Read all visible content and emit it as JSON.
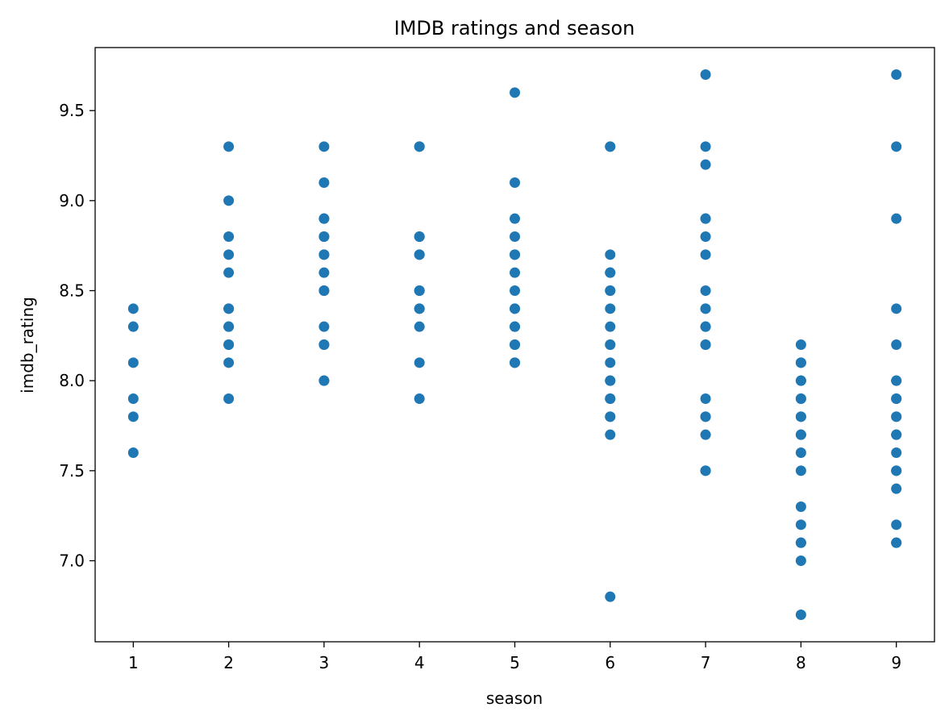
{
  "chart_data": {
    "type": "scatter",
    "title": "IMDB ratings and season",
    "xlabel": "season",
    "ylabel": "imdb_rating",
    "xlim": [
      0.6,
      9.4
    ],
    "ylim": [
      6.55,
      9.85
    ],
    "xticks": [
      1,
      2,
      3,
      4,
      5,
      6,
      7,
      8,
      9
    ],
    "yticks": [
      7.0,
      7.5,
      8.0,
      8.5,
      9.0,
      9.5
    ],
    "ytick_labels": [
      "7.0",
      "7.5",
      "8.0",
      "8.5",
      "9.0",
      "9.5"
    ],
    "grid": false,
    "legend": "none",
    "color": "#1f77b4",
    "points": [
      {
        "season": 1,
        "ratings": [
          8.4,
          8.3,
          8.1,
          7.9,
          7.8,
          7.6
        ]
      },
      {
        "season": 2,
        "ratings": [
          9.3,
          9.0,
          8.8,
          8.7,
          8.6,
          8.4,
          8.4,
          8.3,
          8.3,
          8.2,
          8.2,
          8.1,
          7.9
        ]
      },
      {
        "season": 3,
        "ratings": [
          9.3,
          9.1,
          8.9,
          8.9,
          8.8,
          8.8,
          8.7,
          8.7,
          8.6,
          8.5,
          8.5,
          8.3,
          8.2,
          8.2,
          8.0,
          8.0
        ]
      },
      {
        "season": 4,
        "ratings": [
          9.3,
          9.3,
          8.8,
          8.8,
          8.7,
          8.7,
          8.5,
          8.5,
          8.4,
          8.4,
          8.3,
          8.1,
          7.9
        ]
      },
      {
        "season": 5,
        "ratings": [
          9.6,
          9.1,
          8.9,
          8.8,
          8.7,
          8.7,
          8.6,
          8.5,
          8.4,
          8.4,
          8.3,
          8.3,
          8.2,
          8.2,
          8.1,
          8.1
        ]
      },
      {
        "season": 6,
        "ratings": [
          9.3,
          9.3,
          8.7,
          8.6,
          8.6,
          8.5,
          8.5,
          8.4,
          8.3,
          8.2,
          8.2,
          8.1,
          8.0,
          8.0,
          7.9,
          7.9,
          7.8,
          7.8,
          7.7,
          6.8
        ]
      },
      {
        "season": 7,
        "ratings": [
          9.7,
          9.3,
          9.2,
          8.9,
          8.9,
          8.8,
          8.7,
          8.5,
          8.4,
          8.4,
          8.3,
          8.3,
          8.2,
          8.2,
          7.9,
          7.8,
          7.8,
          7.7,
          7.5,
          7.5
        ]
      },
      {
        "season": 8,
        "ratings": [
          8.2,
          8.1,
          8.1,
          8.0,
          8.0,
          7.9,
          7.9,
          7.8,
          7.8,
          7.7,
          7.7,
          7.6,
          7.5,
          7.3,
          7.2,
          7.1,
          7.1,
          7.0,
          6.7
        ]
      },
      {
        "season": 9,
        "ratings": [
          9.7,
          9.3,
          8.9,
          8.4,
          8.2,
          8.0,
          8.0,
          7.9,
          7.9,
          7.8,
          7.8,
          7.7,
          7.7,
          7.6,
          7.5,
          7.5,
          7.4,
          7.2,
          7.1,
          7.1
        ]
      }
    ]
  }
}
